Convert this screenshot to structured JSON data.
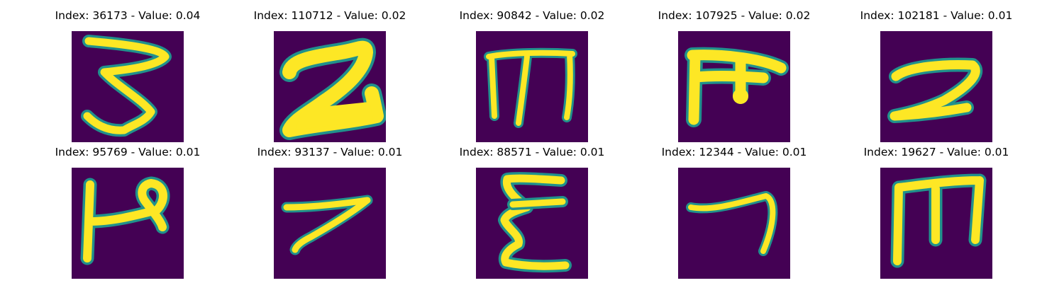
{
  "colors": {
    "background": "#440154",
    "stroke": "#fde725",
    "edge": "#21918c"
  },
  "panels": [
    {
      "title": "Index: 36173 - Value: 0.04",
      "glyph": "digit-3-glyph"
    },
    {
      "title": "Index: 110712 - Value: 0.02",
      "glyph": "digit-2-glyph"
    },
    {
      "title": "Index: 90842 - Value: 0.02",
      "glyph": "m-shape-glyph"
    },
    {
      "title": "Index: 107925 - Value: 0.02",
      "glyph": "pi-shape-glyph"
    },
    {
      "title": "Index: 102181 - Value: 0.01",
      "glyph": "digit-2-glyph"
    },
    {
      "title": "Index: 95769 - Value: 0.01",
      "glyph": "p-shape-glyph"
    },
    {
      "title": "Index: 93137 - Value: 0.01",
      "glyph": "digit-7-glyph"
    },
    {
      "title": "Index: 88571 - Value: 0.01",
      "glyph": "epsilon-shape-glyph"
    },
    {
      "title": "Index: 12344 - Value: 0.01",
      "glyph": "digit-7-glyph"
    },
    {
      "title": "Index: 19627 - Value: 0.01",
      "glyph": "m-shape-glyph"
    }
  ]
}
